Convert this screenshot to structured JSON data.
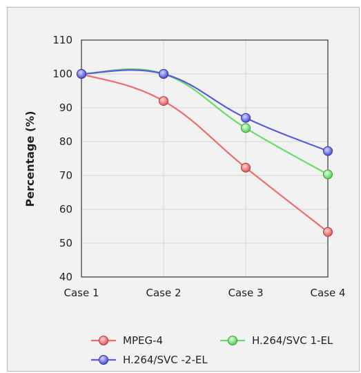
{
  "chart_data": {
    "type": "line",
    "title": "",
    "xlabel": "",
    "ylabel": "Percentage (%)",
    "ylim": [
      40,
      110
    ],
    "yticks": [
      40,
      50,
      60,
      70,
      80,
      90,
      100,
      110
    ],
    "categories": [
      "Case 1",
      "Case 2",
      "Case 3",
      "Case 4"
    ],
    "grid": true,
    "legend_position": "bottom",
    "series": [
      {
        "name": "MPEG-4",
        "values": [
          100,
          92,
          72.3,
          53.3
        ],
        "color": "#ef6b6b"
      },
      {
        "name": "H.264/SVC 1-EL",
        "values": [
          100,
          100,
          84,
          70.3
        ],
        "color": "#66dd66"
      },
      {
        "name": "H.264/SVC -2-EL",
        "values": [
          100,
          100,
          87,
          77.2
        ],
        "color": "#5a5ae0"
      }
    ]
  }
}
